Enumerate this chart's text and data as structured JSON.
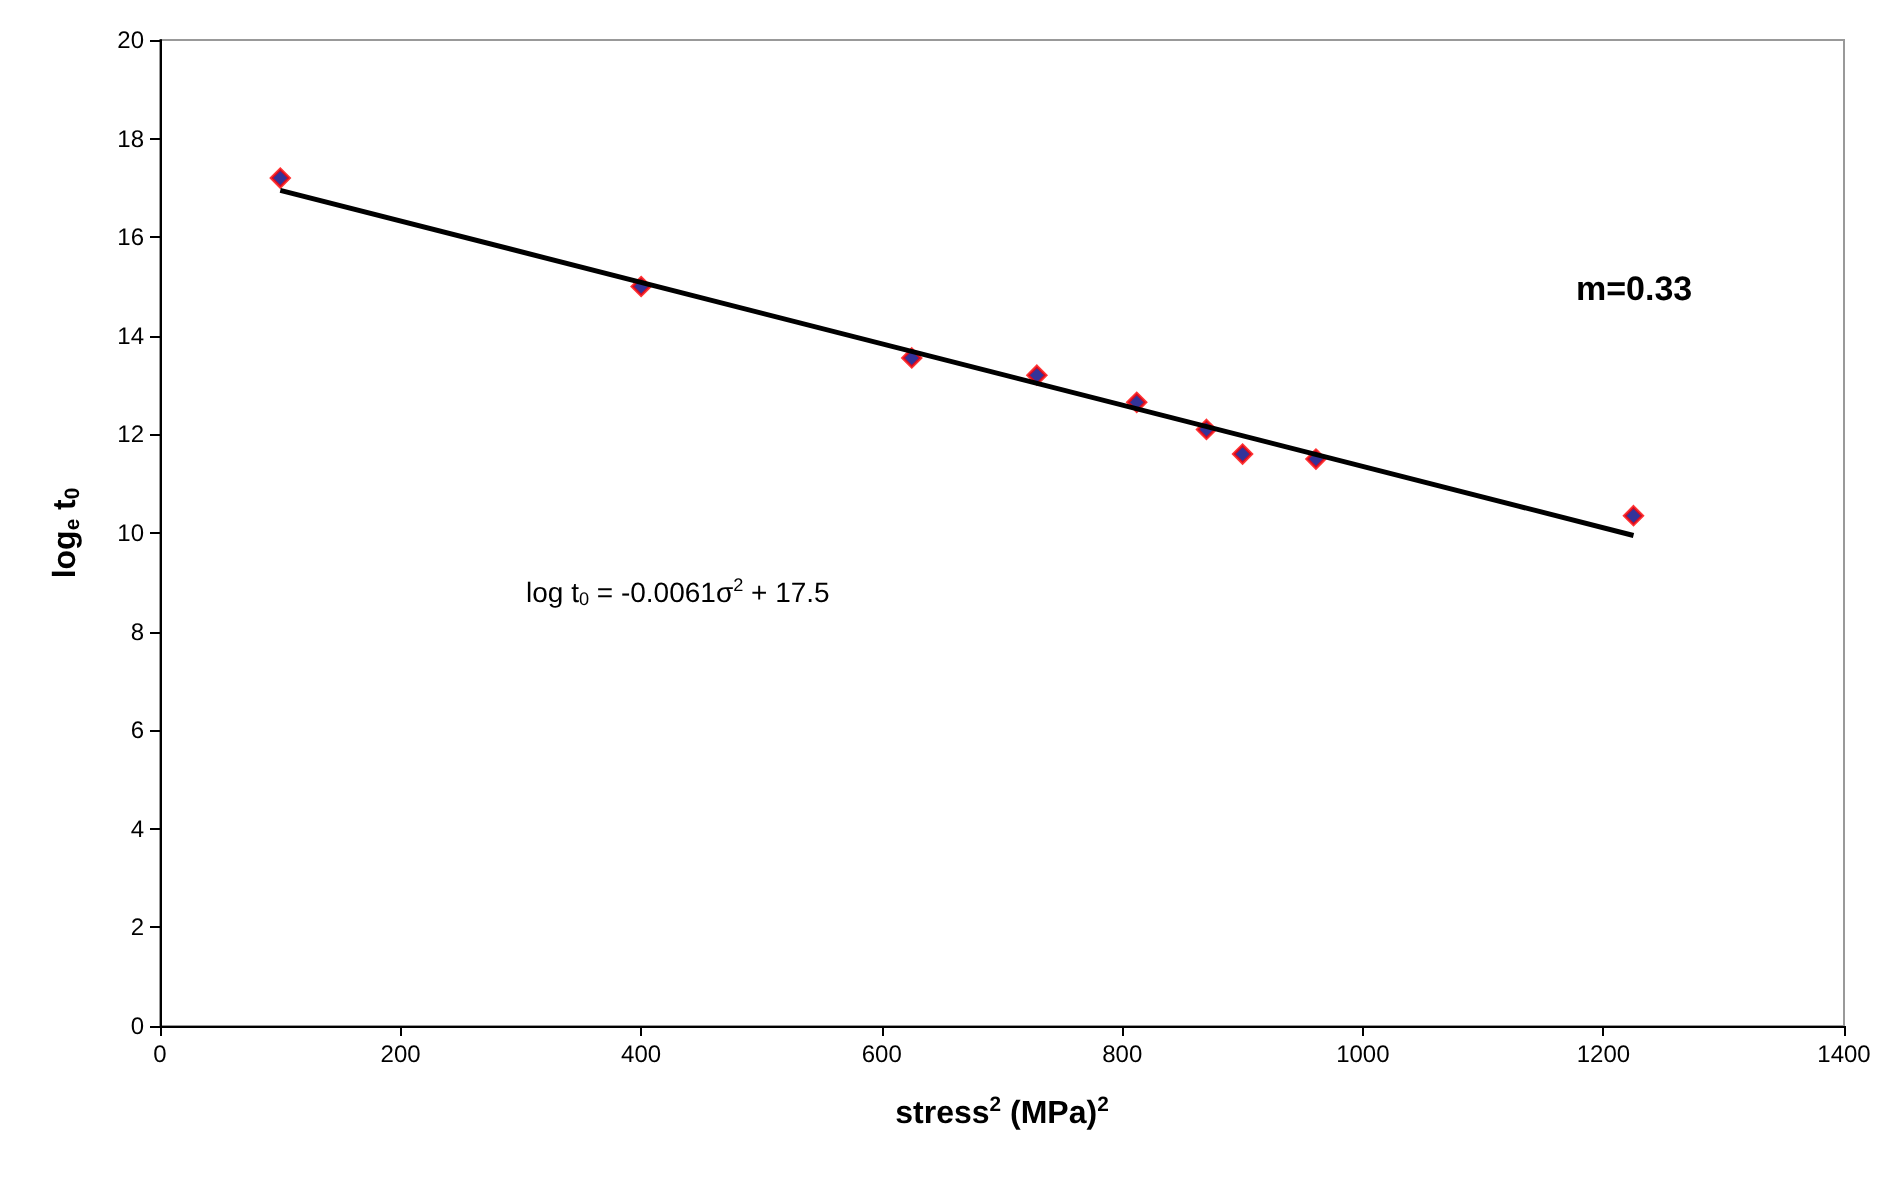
{
  "chart_data": {
    "type": "scatter",
    "xlabel": "stress$^{2}$ (MPa)$^{2}$",
    "ylabel": "log$_{e}$ t$_{0}$",
    "annotations": [
      "m=0.33",
      "log t$_{0}$ = -0.0061σ$^{2}$ + 17.5"
    ],
    "x": [
      100,
      400,
      625,
      729,
      812,
      870,
      900,
      961,
      1225
    ],
    "series": [
      {
        "type": "scatter",
        "color": "#000080",
        "marker": "diamond",
        "values": [
          17.2,
          15.0,
          13.55,
          13.2,
          12.65,
          12.1,
          11.6,
          11.5,
          10.35
        ]
      },
      {
        "type": "line",
        "color": "#000000",
        "marker": "none",
        "x": [
          100,
          1225
        ],
        "values": [
          16.95,
          9.95
        ]
      }
    ],
    "xlim": [
      0,
      1400
    ],
    "xticks": [
      0,
      200,
      400,
      600,
      800,
      1000,
      1200,
      1400
    ],
    "ylim": [
      0,
      20
    ],
    "yticks": [
      0,
      2,
      4,
      6,
      8,
      10,
      12,
      14,
      16,
      18,
      20
    ],
    "grid": false
  }
}
